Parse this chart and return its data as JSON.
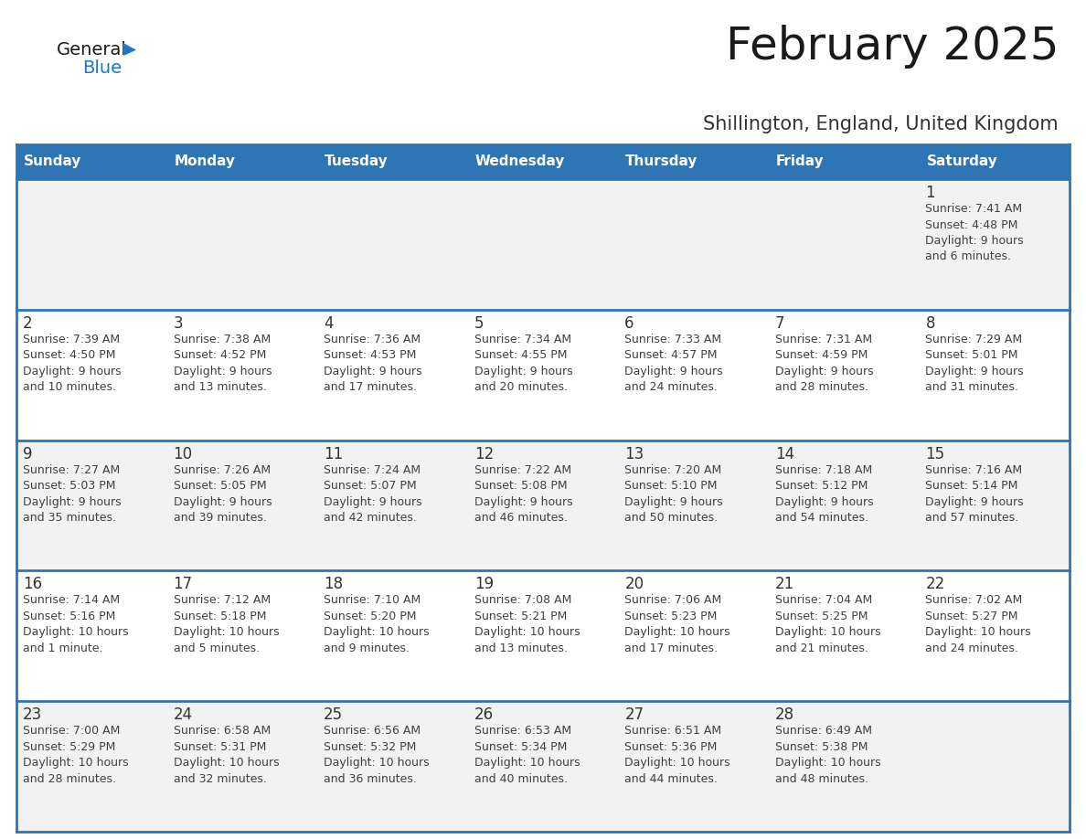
{
  "title": "February 2025",
  "subtitle": "Shillington, England, United Kingdom",
  "days_of_week": [
    "Sunday",
    "Monday",
    "Tuesday",
    "Wednesday",
    "Thursday",
    "Friday",
    "Saturday"
  ],
  "header_bg": "#2E75B6",
  "header_text": "#FFFFFF",
  "row_bg_odd": "#F2F2F2",
  "row_bg_even": "#FFFFFF",
  "cell_text_color": "#404040",
  "day_num_color": "#333333",
  "divider_color": "#2E75B6",
  "title_color": "#1a1a1a",
  "subtitle_color": "#333333",
  "generalblue_black": "#1a1a1a",
  "generalblue_blue": "#1976D2",
  "calendar_data": [
    [
      null,
      null,
      null,
      null,
      null,
      null,
      {
        "day": 1,
        "sunrise": "7:41 AM",
        "sunset": "4:48 PM",
        "daylight": "9 hours and 6 minutes."
      }
    ],
    [
      {
        "day": 2,
        "sunrise": "7:39 AM",
        "sunset": "4:50 PM",
        "daylight": "9 hours and 10 minutes."
      },
      {
        "day": 3,
        "sunrise": "7:38 AM",
        "sunset": "4:52 PM",
        "daylight": "9 hours and 13 minutes."
      },
      {
        "day": 4,
        "sunrise": "7:36 AM",
        "sunset": "4:53 PM",
        "daylight": "9 hours and 17 minutes."
      },
      {
        "day": 5,
        "sunrise": "7:34 AM",
        "sunset": "4:55 PM",
        "daylight": "9 hours and 20 minutes."
      },
      {
        "day": 6,
        "sunrise": "7:33 AM",
        "sunset": "4:57 PM",
        "daylight": "9 hours and 24 minutes."
      },
      {
        "day": 7,
        "sunrise": "7:31 AM",
        "sunset": "4:59 PM",
        "daylight": "9 hours and 28 minutes."
      },
      {
        "day": 8,
        "sunrise": "7:29 AM",
        "sunset": "5:01 PM",
        "daylight": "9 hours and 31 minutes."
      }
    ],
    [
      {
        "day": 9,
        "sunrise": "7:27 AM",
        "sunset": "5:03 PM",
        "daylight": "9 hours and 35 minutes."
      },
      {
        "day": 10,
        "sunrise": "7:26 AM",
        "sunset": "5:05 PM",
        "daylight": "9 hours and 39 minutes."
      },
      {
        "day": 11,
        "sunrise": "7:24 AM",
        "sunset": "5:07 PM",
        "daylight": "9 hours and 42 minutes."
      },
      {
        "day": 12,
        "sunrise": "7:22 AM",
        "sunset": "5:08 PM",
        "daylight": "9 hours and 46 minutes."
      },
      {
        "day": 13,
        "sunrise": "7:20 AM",
        "sunset": "5:10 PM",
        "daylight": "9 hours and 50 minutes."
      },
      {
        "day": 14,
        "sunrise": "7:18 AM",
        "sunset": "5:12 PM",
        "daylight": "9 hours and 54 minutes."
      },
      {
        "day": 15,
        "sunrise": "7:16 AM",
        "sunset": "5:14 PM",
        "daylight": "9 hours and 57 minutes."
      }
    ],
    [
      {
        "day": 16,
        "sunrise": "7:14 AM",
        "sunset": "5:16 PM",
        "daylight": "10 hours and 1 minute."
      },
      {
        "day": 17,
        "sunrise": "7:12 AM",
        "sunset": "5:18 PM",
        "daylight": "10 hours and 5 minutes."
      },
      {
        "day": 18,
        "sunrise": "7:10 AM",
        "sunset": "5:20 PM",
        "daylight": "10 hours and 9 minutes."
      },
      {
        "day": 19,
        "sunrise": "7:08 AM",
        "sunset": "5:21 PM",
        "daylight": "10 hours and 13 minutes."
      },
      {
        "day": 20,
        "sunrise": "7:06 AM",
        "sunset": "5:23 PM",
        "daylight": "10 hours and 17 minutes."
      },
      {
        "day": 21,
        "sunrise": "7:04 AM",
        "sunset": "5:25 PM",
        "daylight": "10 hours and 21 minutes."
      },
      {
        "day": 22,
        "sunrise": "7:02 AM",
        "sunset": "5:27 PM",
        "daylight": "10 hours and 24 minutes."
      }
    ],
    [
      {
        "day": 23,
        "sunrise": "7:00 AM",
        "sunset": "5:29 PM",
        "daylight": "10 hours and 28 minutes."
      },
      {
        "day": 24,
        "sunrise": "6:58 AM",
        "sunset": "5:31 PM",
        "daylight": "10 hours and 32 minutes."
      },
      {
        "day": 25,
        "sunrise": "6:56 AM",
        "sunset": "5:32 PM",
        "daylight": "10 hours and 36 minutes."
      },
      {
        "day": 26,
        "sunrise": "6:53 AM",
        "sunset": "5:34 PM",
        "daylight": "10 hours and 40 minutes."
      },
      {
        "day": 27,
        "sunrise": "6:51 AM",
        "sunset": "5:36 PM",
        "daylight": "10 hours and 44 minutes."
      },
      {
        "day": 28,
        "sunrise": "6:49 AM",
        "sunset": "5:38 PM",
        "daylight": "10 hours and 48 minutes."
      },
      null
    ]
  ]
}
